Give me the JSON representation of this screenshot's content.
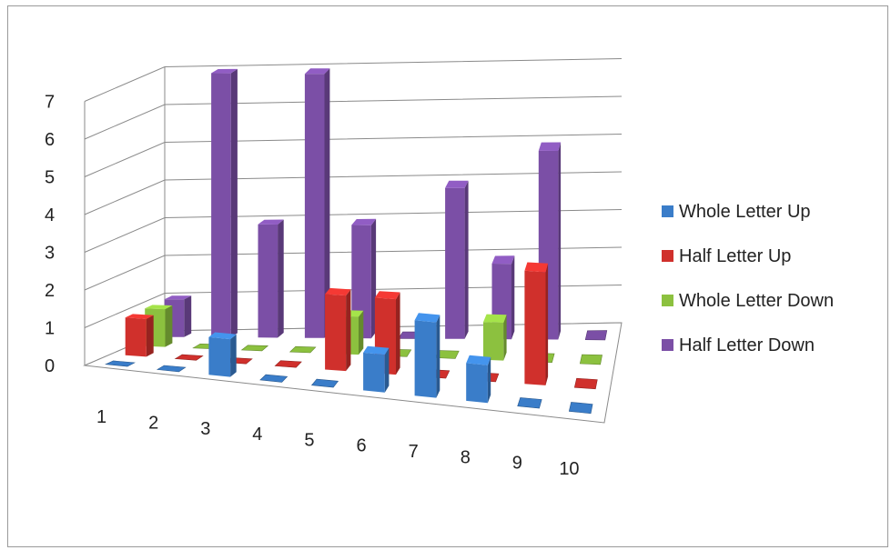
{
  "chart_data": {
    "type": "bar",
    "categories": [
      "1",
      "2",
      "3",
      "4",
      "5",
      "6",
      "7",
      "8",
      "9",
      "10"
    ],
    "y_ticks": [
      "0",
      "1",
      "2",
      "3",
      "4",
      "5",
      "6",
      "7"
    ],
    "ylim": [
      0,
      7
    ],
    "grid": true,
    "legend_position": "right",
    "series": [
      {
        "name": "Whole Letter Up",
        "color": "#3a7dc9",
        "values": [
          0,
          0,
          1,
          0,
          0,
          1,
          2,
          1,
          0,
          0
        ]
      },
      {
        "name": "Half Letter Up",
        "color": "#d0302c",
        "values": [
          1,
          0,
          0,
          0,
          2,
          2,
          0,
          0,
          3,
          0
        ]
      },
      {
        "name": "Whole Letter Down",
        "color": "#8cc13f",
        "values": [
          1,
          0,
          0,
          0,
          1,
          0,
          0,
          1,
          0,
          0
        ]
      },
      {
        "name": "Half Letter Down",
        "color": "#7b4fa6",
        "values": [
          1,
          7,
          3,
          7,
          3,
          0,
          4,
          2,
          5,
          0
        ]
      }
    ]
  }
}
